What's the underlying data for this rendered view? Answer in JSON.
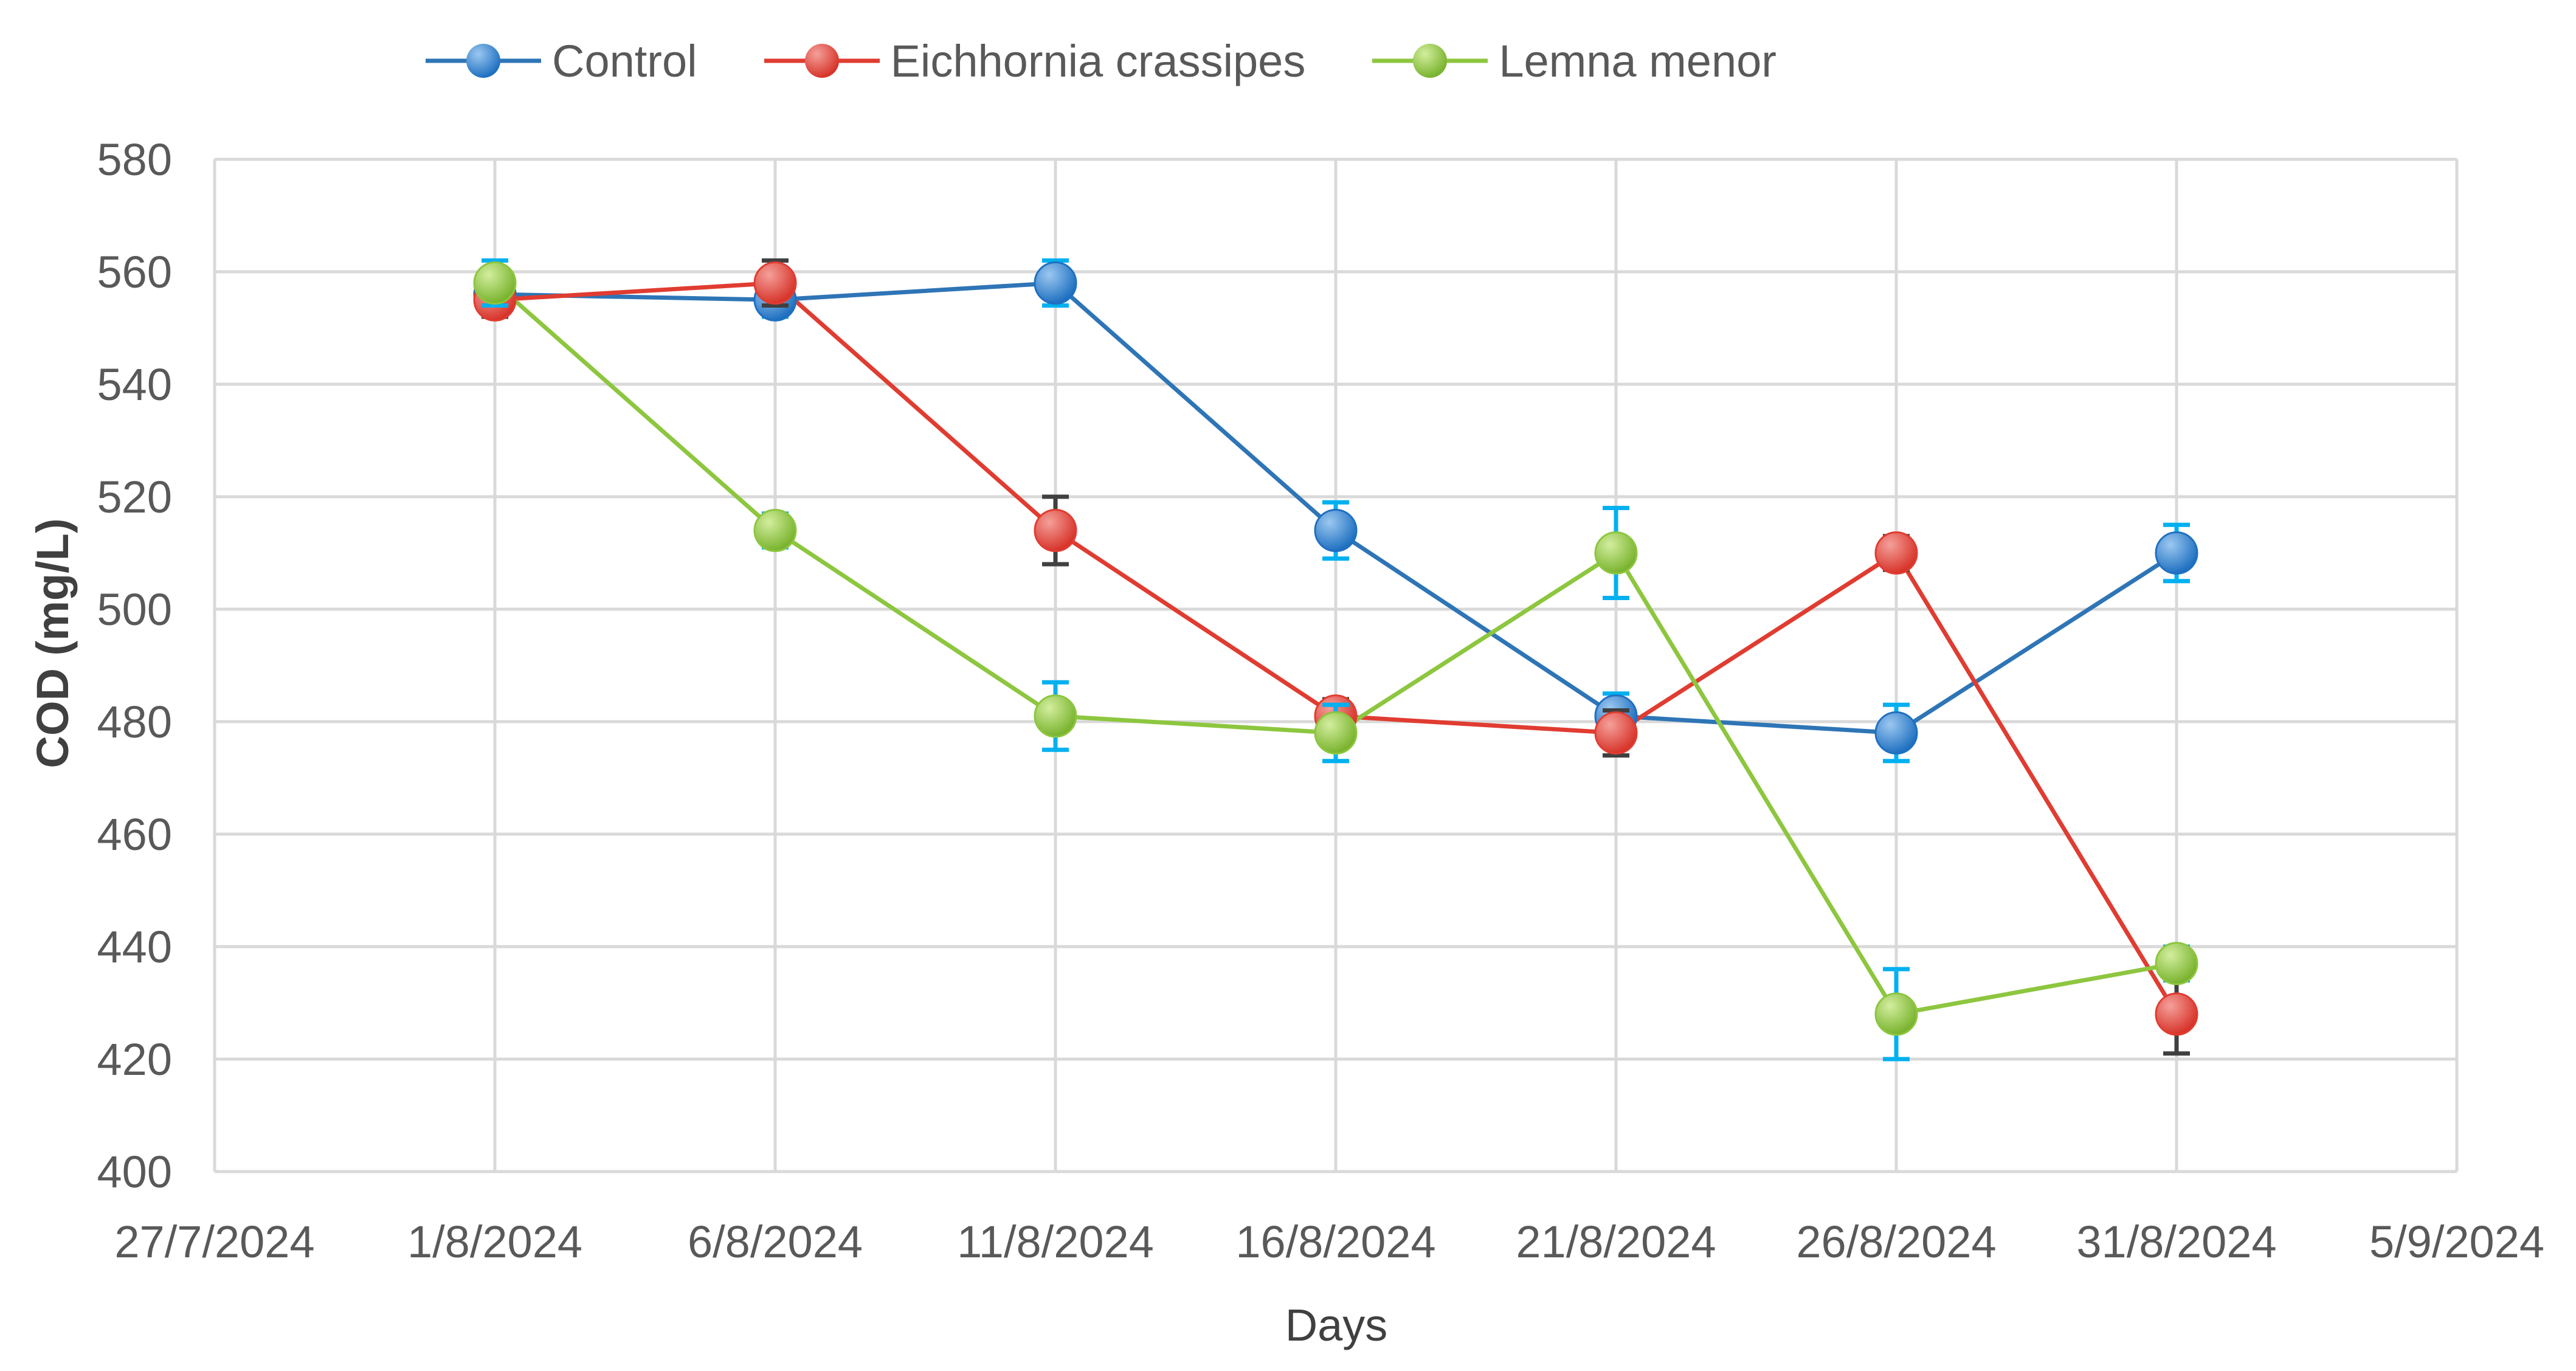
{
  "chart_data": {
    "type": "line",
    "xlabel": "Days",
    "ylabel": "COD (mg/L)",
    "x_ticks": [
      "27/7/2024",
      "1/8/2024",
      "6/8/2024",
      "11/8/2024",
      "16/8/2024",
      "21/8/2024",
      "26/8/2024",
      "31/8/2024",
      "5/9/2024"
    ],
    "y_ticks": [
      "400",
      "420",
      "440",
      "460",
      "480",
      "500",
      "520",
      "540",
      "560",
      "580"
    ],
    "ylim": [
      400,
      580
    ],
    "xlim": [
      "27/7/2024",
      "5/9/2024"
    ],
    "x": [
      "1/8/2024",
      "6/8/2024",
      "11/8/2024",
      "16/8/2024",
      "21/8/2024",
      "26/8/2024",
      "31/8/2024"
    ],
    "grid": true,
    "legend_position": "top",
    "series": [
      {
        "name": "Control",
        "color": "#2E75B6",
        "marker_color": "#1F70C1",
        "values": [
          556,
          555,
          558,
          514,
          481,
          478,
          510
        ],
        "error": [
          4,
          3,
          4,
          5,
          4,
          5,
          5
        ],
        "error_color": "#00B0F0"
      },
      {
        "name": "Eichhornia crassipes",
        "color": "#E03C31",
        "marker_color": "#E03C31",
        "values": [
          555,
          558,
          514,
          481,
          478,
          510,
          428
        ],
        "error": [
          3,
          4,
          6,
          3,
          4,
          3,
          7
        ],
        "error_color": "#404040"
      },
      {
        "name": "Lemna menor",
        "color": "#8DC63F",
        "marker_color": "#8DC63F",
        "values": [
          558,
          514,
          481,
          478,
          510,
          428,
          437
        ],
        "error": [
          4,
          3,
          6,
          5,
          8,
          8,
          3
        ],
        "error_color": "#00B0F0"
      }
    ]
  }
}
